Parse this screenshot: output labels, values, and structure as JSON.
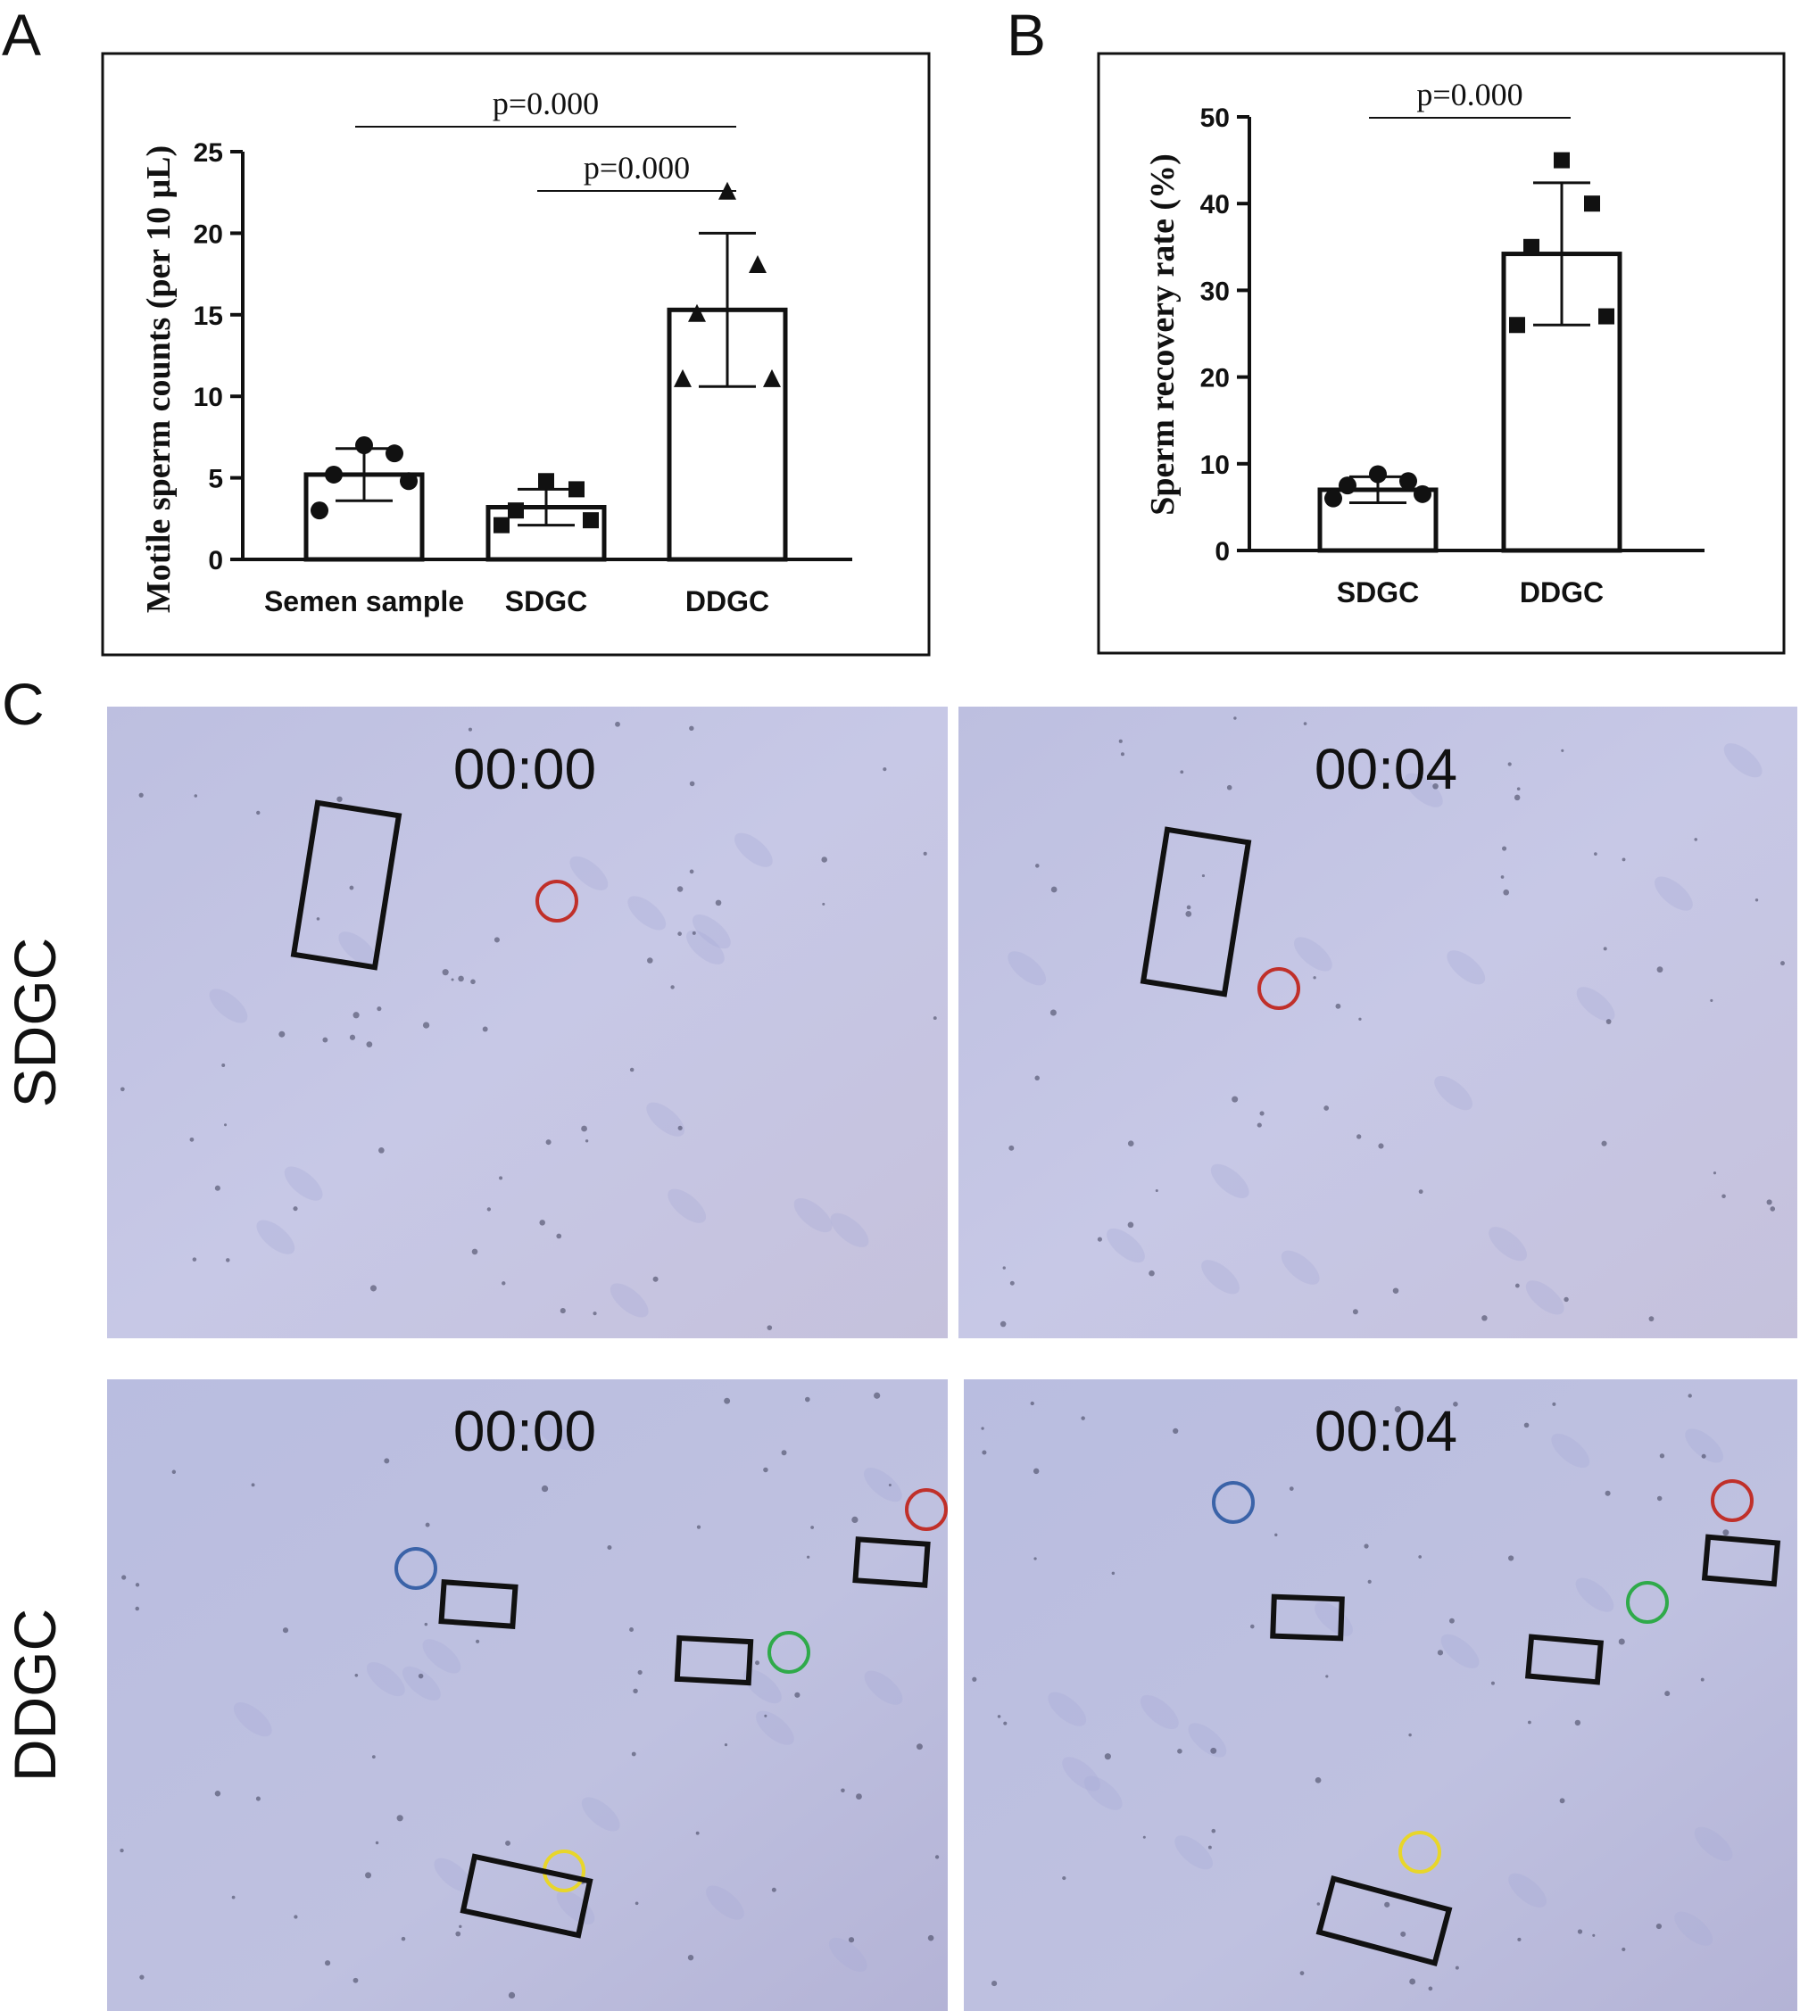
{
  "panels": {
    "a": "A",
    "b": "B",
    "c": "C"
  },
  "chart_data": [
    {
      "type": "bar",
      "categories": [
        "Semen sample",
        "SDGC",
        "DDGC"
      ],
      "values": [
        5.2,
        3.2,
        15.3
      ],
      "error": [
        1.6,
        1.1,
        4.7
      ],
      "points": [
        [
          7.0,
          6.5,
          5.2,
          4.8,
          3.0
        ],
        [
          4.8,
          4.3,
          3.0,
          2.4,
          2.1
        ],
        [
          22.5,
          18.0,
          15.0,
          11.0,
          11.0
        ]
      ],
      "marker": "circle",
      "ylabel": "Motile sperm counts (per 10 μL)",
      "yticks": [
        "0",
        "5",
        "10",
        "15",
        "20",
        "25"
      ],
      "ylim": [
        0,
        25
      ],
      "comparisons": [
        {
          "from": 0,
          "to": 2,
          "label": "p=0.000"
        },
        {
          "from": 1,
          "to": 2,
          "label": "p=0.000"
        }
      ]
    },
    {
      "type": "bar",
      "categories": [
        "SDGC",
        "DDGC"
      ],
      "values": [
        7.0,
        34.2
      ],
      "error": [
        1.5,
        8.2
      ],
      "points": [
        [
          8.8,
          8.0,
          7.5,
          6.5,
          6.0
        ],
        [
          45.0,
          40.0,
          35.0,
          27.0,
          26.0
        ]
      ],
      "marker": "square",
      "ylabel": "Sperm recovery rate (%)",
      "yticks": [
        "0",
        "10",
        "20",
        "30",
        "40",
        "50"
      ],
      "ylim": [
        0,
        50
      ],
      "comparisons": [
        {
          "from": 0,
          "to": 1,
          "label": "p=0.000"
        }
      ]
    }
  ],
  "micrographs": {
    "rows": [
      {
        "label": "SDGC",
        "frames": [
          "00:00",
          "00:04"
        ]
      },
      {
        "label": "DDGC",
        "frames": [
          "00:00",
          "00:04"
        ]
      }
    ],
    "circle_colors": {
      "red": "#c0302a",
      "blue": "#3b63a8",
      "green": "#2faa4a",
      "yellow": "#e8d62a"
    },
    "box_color": "#111111",
    "field_color": "#c3c4e2"
  }
}
